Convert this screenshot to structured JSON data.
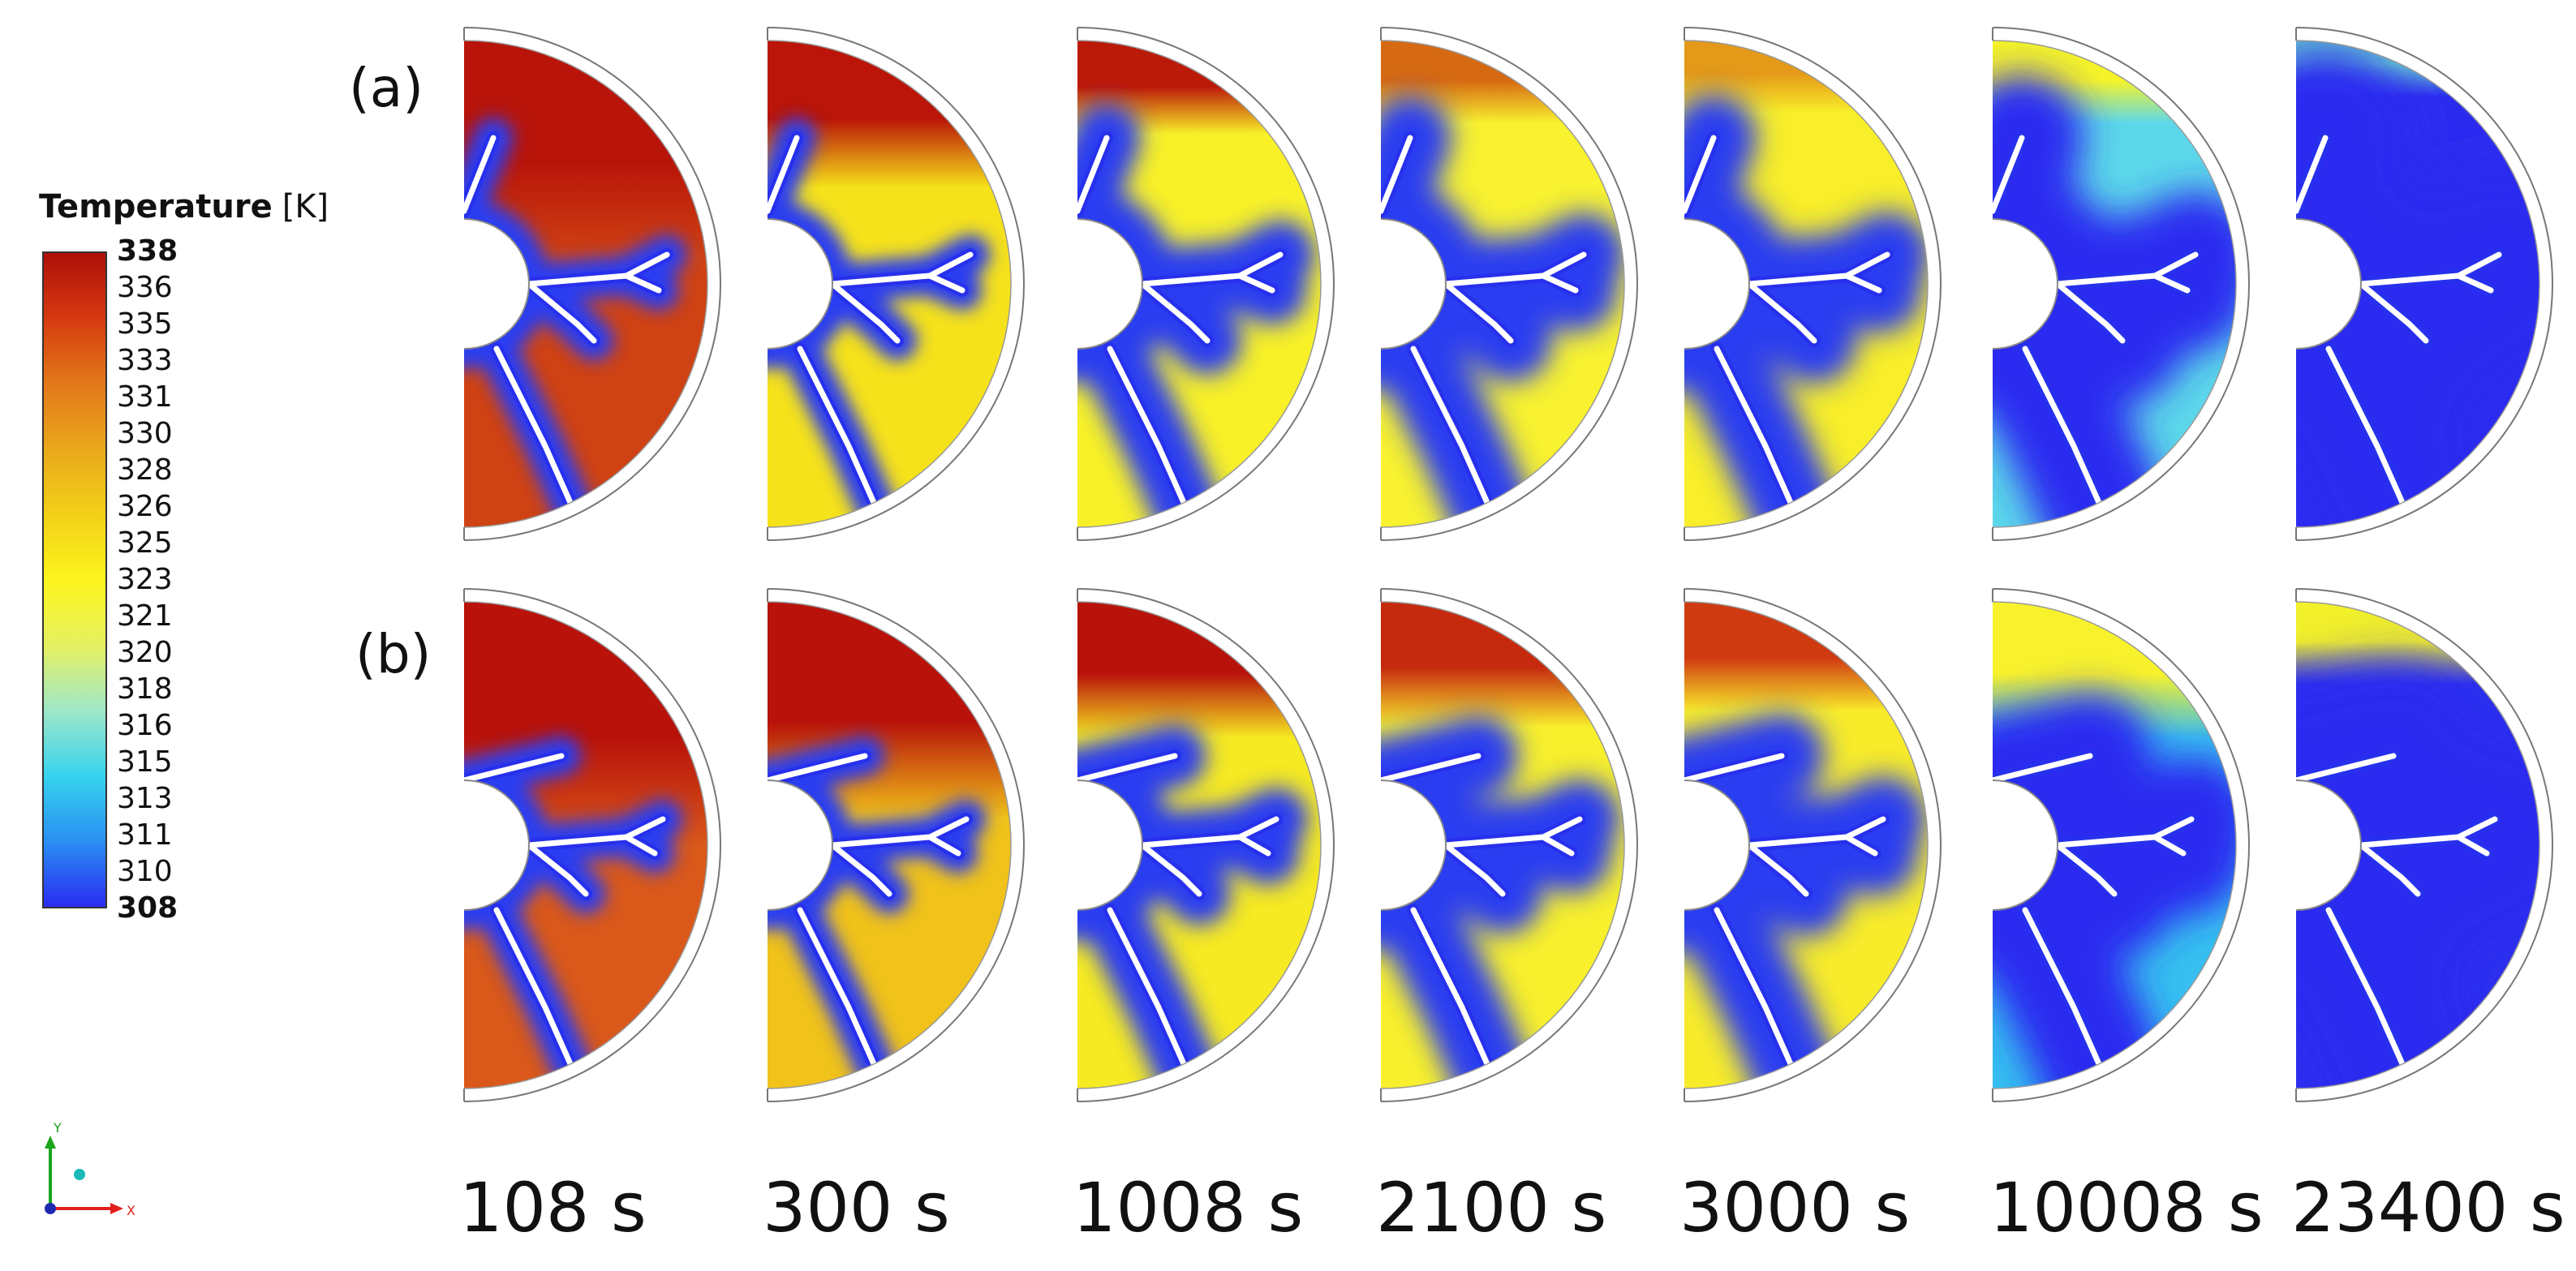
{
  "legend": {
    "title": "Temperature",
    "unit": "[K]",
    "ticks": [
      "338",
      "336",
      "335",
      "333",
      "331",
      "330",
      "328",
      "326",
      "325",
      "323",
      "321",
      "320",
      "318",
      "316",
      "315",
      "313",
      "311",
      "310",
      "308"
    ],
    "colors": [
      "#ae0f08",
      "#d63a10",
      "#e2781a",
      "#e9a81a",
      "#f2d018",
      "#fcf51c",
      "#e6f060",
      "#9ee7c8",
      "#36d3ee",
      "#2a8ff2",
      "#2a2cf0"
    ]
  },
  "rows": [
    {
      "label": "(a)"
    },
    {
      "label": "(b)"
    }
  ],
  "times": [
    "108 s",
    "300 s",
    "1008 s",
    "2100 s",
    "3000 s",
    "10008 s",
    "23400 s"
  ],
  "axes": {
    "y": "Y",
    "x": "X"
  },
  "fields": {
    "a": [
      {
        "base": "#cf4213",
        "top": "#b81409",
        "coolZone": 0.5,
        "top_band": 0.45
      },
      {
        "base": "#f6e21a",
        "top": "#ba1508",
        "coolZone": 0.5,
        "top_band": 0.32
      },
      {
        "base": "#f8f128",
        "top": "#bc1a09",
        "coolZone": 1.0,
        "top_band": 0.22
      },
      {
        "base": "#f8f230",
        "top": "#d66a12",
        "coolZone": 1.25,
        "top_band": 0.2
      },
      {
        "base": "#f8ee2a",
        "top": "#e49a18",
        "coolZone": 1.3,
        "top_band": 0.18
      },
      {
        "base": "#5cd8ea",
        "top": "#f6f428",
        "coolZone": 2.0,
        "top_band": 0.2
      },
      {
        "base": "#2c2cf0",
        "top": "#6de0cc",
        "coolZone": 3.0,
        "top_band": 0.15
      }
    ],
    "b": [
      {
        "base": "#d9581a",
        "top": "#b8120a",
        "coolZone": 0.5,
        "top_band": 0.5
      },
      {
        "base": "#f0c21a",
        "top": "#b8120a",
        "coolZone": 0.5,
        "top_band": 0.45
      },
      {
        "base": "#f6ea22",
        "top": "#b8130a",
        "coolZone": 0.9,
        "top_band": 0.3
      },
      {
        "base": "#f8f02c",
        "top": "#c62a0e",
        "coolZone": 1.2,
        "top_band": 0.28
      },
      {
        "base": "#f8ec2a",
        "top": "#cf3a10",
        "coolZone": 1.3,
        "top_band": 0.25
      },
      {
        "base": "#36bff0",
        "top": "#f8f22c",
        "coolZone": 2.0,
        "top_band": 0.3
      },
      {
        "base": "#2c30ee",
        "top": "#f2f02a",
        "coolZone": 3.0,
        "top_band": 0.2
      }
    ]
  }
}
